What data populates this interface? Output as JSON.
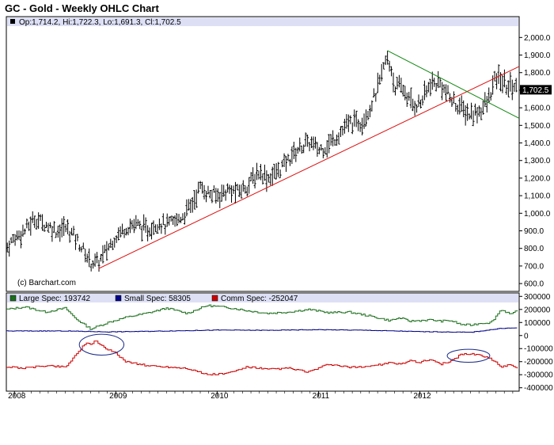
{
  "title": "GC - Gold - Weekly OHLC Chart",
  "colors": {
    "header_band": "#dde0f5",
    "frame": "#000000",
    "price_bars": "#000000",
    "support_line": "#dd1111",
    "resistance_line": "#118811",
    "large_spec": "#1a6e1a",
    "small_spec": "#000088",
    "comm_spec": "#cc0000",
    "annotation_ellipse": "#1a2a88"
  },
  "chart_data": [
    {
      "type": "ohlc",
      "title": "GC - Gold - Weekly OHLC Chart",
      "ohlc_readout": {
        "open_label": "Op:",
        "open": "1,714.2",
        "high_label": "Hi:",
        "high": "1,722.3",
        "low_label": "Lo:",
        "low": "1,691.3",
        "close_label": "Cl:",
        "close": "1,702.5"
      },
      "last_price_label": "1,702.5",
      "last_price": 1702.5,
      "watermark": "(c) Barchart.com",
      "ylim": [
        560,
        2060
      ],
      "y_ticks": [
        600,
        700,
        800,
        900,
        1000,
        1100,
        1200,
        1300,
        1400,
        1500,
        1600,
        1700,
        1800,
        1900,
        2000
      ],
      "y_tick_labels": [
        "600.0",
        "700.0",
        "800.0",
        "900.0",
        "1,000.0",
        "1,100.0",
        "1,200.0",
        "1,300.0",
        "1,400.0",
        "1,500.0",
        "1,600.0",
        "1,700.0",
        "1,800.0",
        "1,900.0",
        "2,000.0"
      ],
      "x_range": [
        2007.92,
        2012.98
      ],
      "x_ticks": [
        2008,
        2009,
        2010,
        2011,
        2012
      ],
      "x_tick_labels": [
        "2008",
        "2009",
        "2010",
        "2011",
        "2012"
      ],
      "trendlines": [
        {
          "kind": "support",
          "x": [
            2008.83,
            2012.98
          ],
          "y": [
            685,
            1835
          ]
        },
        {
          "kind": "resistance",
          "x": [
            2011.68,
            2012.98
          ],
          "y": [
            1925,
            1540
          ]
        }
      ],
      "close_path": {
        "x": [
          2007.92,
          2008.0,
          2008.1,
          2008.2,
          2008.3,
          2008.42,
          2008.5,
          2008.58,
          2008.67,
          2008.75,
          2008.83,
          2008.92,
          2009.0,
          2009.1,
          2009.2,
          2009.3,
          2009.42,
          2009.5,
          2009.58,
          2009.67,
          2009.75,
          2009.83,
          2009.92,
          2010.0,
          2010.1,
          2010.2,
          2010.3,
          2010.42,
          2010.5,
          2010.58,
          2010.67,
          2010.75,
          2010.83,
          2010.92,
          2011.0,
          2011.1,
          2011.2,
          2011.3,
          2011.42,
          2011.5,
          2011.58,
          2011.67,
          2011.72,
          2011.75,
          2011.83,
          2011.92,
          2012.0,
          2012.1,
          2012.2,
          2012.3,
          2012.42,
          2012.5,
          2012.58,
          2012.67,
          2012.75,
          2012.8,
          2012.85,
          2012.92,
          2012.96
        ],
        "y": [
          800,
          860,
          900,
          970,
          940,
          900,
          920,
          880,
          800,
          720,
          720,
          800,
          870,
          920,
          940,
          900,
          950,
          930,
          950,
          990,
          1050,
          1150,
          1110,
          1100,
          1130,
          1120,
          1160,
          1240,
          1200,
          1230,
          1280,
          1340,
          1380,
          1400,
          1360,
          1390,
          1450,
          1510,
          1520,
          1590,
          1700,
          1880,
          1820,
          1720,
          1710,
          1620,
          1620,
          1730,
          1740,
          1650,
          1590,
          1560,
          1580,
          1630,
          1770,
          1760,
          1720,
          1730,
          1702.5
        ]
      }
    },
    {
      "type": "line",
      "title": "",
      "ylim": [
        -420000,
        320000
      ],
      "y_ticks": [
        -400000,
        -300000,
        -200000,
        -100000,
        0,
        100000,
        200000,
        300000
      ],
      "y_tick_labels": [
        "-400000",
        "-300000",
        "-200000",
        "-100000",
        "0",
        "100000",
        "200000",
        "300000"
      ],
      "x_range": [
        2007.92,
        2012.98
      ],
      "series": [
        {
          "name": "Large Spec:",
          "value_label": "193742",
          "color": "#1a6e1a",
          "x": [
            2007.92,
            2008.1,
            2008.3,
            2008.5,
            2008.6,
            2008.75,
            2008.92,
            2009.1,
            2009.3,
            2009.5,
            2009.7,
            2009.9,
            2010.1,
            2010.3,
            2010.5,
            2010.7,
            2010.9,
            2011.1,
            2011.3,
            2011.5,
            2011.7,
            2011.8,
            2011.9,
            2012.0,
            2012.1,
            2012.2,
            2012.3,
            2012.4,
            2012.5,
            2012.6,
            2012.7,
            2012.8,
            2012.9,
            2012.96
          ],
          "y": [
            200000,
            220000,
            180000,
            210000,
            130000,
            50000,
            100000,
            140000,
            170000,
            210000,
            170000,
            230000,
            215000,
            190000,
            170000,
            180000,
            200000,
            175000,
            180000,
            150000,
            115000,
            135000,
            110000,
            115000,
            120000,
            110000,
            115000,
            85000,
            80000,
            95000,
            100000,
            200000,
            160000,
            193742
          ]
        },
        {
          "name": "Small Spec:",
          "value_label": "58305",
          "color": "#000088",
          "x": [
            2007.92,
            2008.5,
            2008.92,
            2009.5,
            2010.0,
            2010.5,
            2011.0,
            2011.5,
            2012.0,
            2012.5,
            2012.8,
            2012.96
          ],
          "y": [
            35000,
            35000,
            28000,
            35000,
            42000,
            40000,
            45000,
            40000,
            30000,
            25000,
            55000,
            58305
          ]
        },
        {
          "name": "Comm Spec:",
          "value_label": "-252047",
          "color": "#cc0000",
          "x": [
            2007.92,
            2008.1,
            2008.3,
            2008.5,
            2008.6,
            2008.7,
            2008.75,
            2008.8,
            2008.9,
            2009.0,
            2009.1,
            2009.3,
            2009.5,
            2009.7,
            2009.9,
            2010.1,
            2010.3,
            2010.5,
            2010.7,
            2010.9,
            2011.1,
            2011.3,
            2011.5,
            2011.7,
            2011.8,
            2011.9,
            2012.0,
            2012.1,
            2012.2,
            2012.3,
            2012.4,
            2012.5,
            2012.6,
            2012.7,
            2012.8,
            2012.9,
            2012.96
          ],
          "y": [
            -240000,
            -250000,
            -230000,
            -240000,
            -150000,
            -60000,
            -70000,
            -40000,
            -100000,
            -140000,
            -200000,
            -230000,
            -240000,
            -250000,
            -300000,
            -290000,
            -240000,
            -260000,
            -250000,
            -280000,
            -220000,
            -245000,
            -235000,
            -210000,
            -220000,
            -190000,
            -205000,
            -180000,
            -220000,
            -200000,
            -145000,
            -140000,
            -150000,
            -180000,
            -240000,
            -220000,
            -252047
          ]
        }
      ],
      "annotations": [
        {
          "shape": "ellipse",
          "center_x": 2008.86,
          "center_y": -70000,
          "rx_years": 0.22,
          "ry": 80000
        },
        {
          "shape": "ellipse",
          "center_x": 2012.48,
          "center_y": -155000,
          "rx_years": 0.21,
          "ry": 50000
        }
      ]
    }
  ]
}
